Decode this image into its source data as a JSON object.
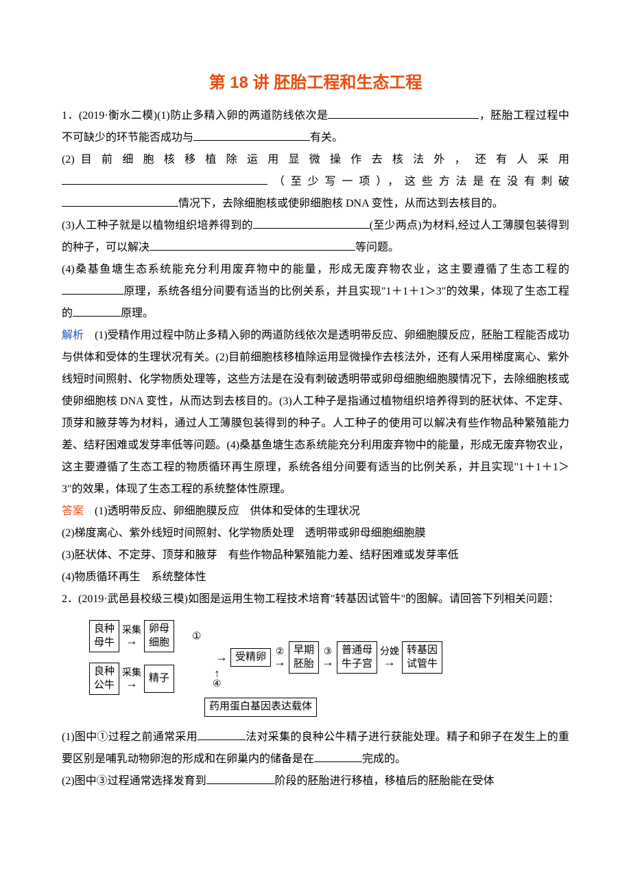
{
  "title": "第 18 讲  胚胎工程和生态工程",
  "q1": {
    "lead": "1．(2019·衡水二模)(1)防止多精入卵的两道防线依次是",
    "tail1": "，胚胎工程过程中不可缺少的环节能否成功与",
    "tail1b": "有关。",
    "p2a": "(2) 目 前 细 胞 核 移 植 除 运 用 显 微 操 作 去 核 法 外 ， 还 有 人 采 用",
    "p2b": "（至少写一项），这些方法是在没有刺破",
    "p2c": "情况下，去除细胞核或使卵细胞核 DNA 变性，从而达到去核目的。",
    "p3a": "(3)人工种子就是以植物组织培养得到的",
    "p3b": "(至少两点)为材料,经过人工薄膜包装得到的种子，可以解决",
    "p3c": "等问题。",
    "p4a": "(4)桑基鱼塘生态系统能充分利用废弃物中的能量，形成无废弃物农业，这主要遵循了生态工程的",
    "p4b": "原理，系统各组分间要有适当的比例关系，并且实现\"1＋1＋1＞3\"的效果，体现了生态工程的",
    "p4c": "原理。"
  },
  "exp_label": "解析",
  "exp_text": "　(1)受精作用过程中防止多精入卵的两道防线依次是透明带反应、卵细胞膜反应，胚胎工程能否成功与供体和受体的生理状况有关。(2)目前细胞核移植除运用显微操作去核法外，还有人采用梯度离心、紫外线短时间照射、化学物质处理等，这些方法是在没有刺破透明带或卵母细胞细胞膜情况下，去除细胞核或使卵细胞核 DNA 变性，从而达到去核目的。(3)人工种子是指通过植物组织培养得到的胚状体、不定芽、顶芽和腋芽等为材料，通过人工薄膜包装得到的种子。人工种子的使用可以解决有些作物品种繁殖能力差、结籽困难或发芽率低等问题。(4)桑基鱼塘生态系统能充分利用废弃物中的能量，形成无废弃物农业，这主要遵循了生态工程的物质循环再生原理，系统各组分间要有适当的比例关系，并且实现\"1＋1＋1＞3\"的效果，体现了生态工程的系统整体性原理。",
  "ans_label": "答案",
  "ans": {
    "l1": "　(1)透明带反应、卵细胞膜反应　供体和受体的生理状况",
    "l2": "(2)梯度离心、紫外线短时间照射、化学物质处理　透明带或卵母细胞细胞膜",
    "l3": "(3)胚状体、不定芽、顶芽和腋芽　有些作物品种繁殖能力差、结籽困难或发芽率低",
    "l4": "(4)物质循环再生　系统整体性"
  },
  "q2_intro": "2．(2019·武邑县校级三模)如图是运用生物工程技术培育\"转基因试管牛\"的图解。请回答下列相关问题：",
  "diagram": {
    "nodes": {
      "muniu": "良种\n母牛",
      "gongniu": "良种\n公牛",
      "luanmu": "卵母\n细胞",
      "jingzi": "精子",
      "shoujingluan": "受精卵",
      "zaoqi": "早期\n胚胎",
      "zigong": "普通母\n牛子宫",
      "shiguan": "转基因\n试管牛",
      "zaiti": "药用蛋白基因表达载体"
    },
    "edge_labels": {
      "caiji": "采集",
      "n1": "①",
      "n2": "②",
      "n3": "③",
      "n4": "④",
      "fenmian": "分娩"
    },
    "arrows": {
      "right": "→",
      "up": "↑"
    },
    "box_border_color": "#000000",
    "font_size": 15,
    "text_color": "#000000",
    "background": "#ffffff"
  },
  "q2_p1a": "(1)图中①过程之前通常采用",
  "q2_p1b": "法对采集的良种公牛精子进行获能处理。精子和卵子在发生上的重要区别是哺乳动物卵泡的形成和在卵巢内的储备是在",
  "q2_p1c": "完成的。",
  "q2_p2a": "(2)图中③过程通常选择发育到",
  "q2_p2b": "阶段的胚胎进行移植，移植后的胚胎能在受体",
  "blanks": {
    "w_long": 220,
    "w_mid": 170,
    "w_xlong": 300,
    "w_short": 90,
    "w_tiny": 70,
    "w_small": 100
  },
  "colors": {
    "title": "#e94e0f",
    "label": "#1b5bb3",
    "text": "#000000",
    "bg": "#ffffff"
  },
  "typography": {
    "title_fontsize": 24,
    "body_fontsize": 16,
    "line_height": 2.0,
    "title_font": "SimHei",
    "body_font": "SimSun"
  }
}
